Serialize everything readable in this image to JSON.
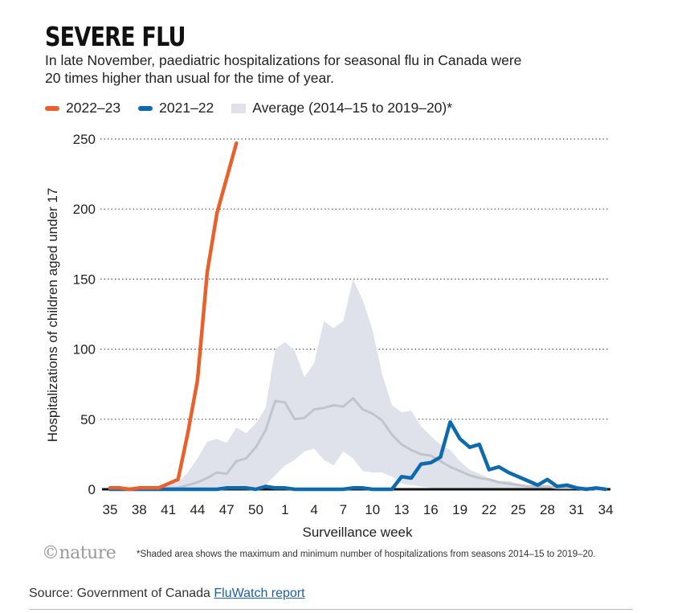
{
  "title": "SEVERE FLU",
  "subtitle": "In late November, paediatric hospitalizations for seasonal flu in Canada were 20 times higher than usual for the time of year.",
  "legend": {
    "s1": "2022–23",
    "s2": "2021–22",
    "s3": "Average (2014–15 to 2019–20)*"
  },
  "logo": "©nature",
  "footnote": "*Shaded area shows the maximum and minimum number of hospitalizations from seasons 2014–15 to 2019–20.",
  "source": {
    "prefix": "Source: Government of Canada ",
    "link": "FluWatch report"
  },
  "colors": {
    "s2022": "#e8612c",
    "s2021": "#0f6aad",
    "avg": "#c0c4cc",
    "band": "#dfe2ea"
  },
  "chart_data": {
    "type": "line",
    "xlabel": "Surveillance week",
    "ylabel": "Hospitalizations of children aged under 17",
    "ylim": [
      0,
      250
    ],
    "yticks": [
      0,
      50,
      100,
      150,
      200,
      250
    ],
    "x_weeks": [
      35,
      36,
      37,
      38,
      39,
      40,
      41,
      42,
      43,
      44,
      45,
      46,
      47,
      48,
      49,
      50,
      51,
      52,
      1,
      2,
      3,
      4,
      5,
      6,
      7,
      8,
      9,
      10,
      11,
      12,
      13,
      14,
      15,
      16,
      17,
      18,
      19,
      20,
      21,
      22,
      23,
      24,
      25,
      26,
      27,
      28,
      29,
      30,
      31,
      32,
      33,
      34
    ],
    "xtick_labels": [
      "35",
      "38",
      "41",
      "44",
      "47",
      "50",
      "1",
      "4",
      "7",
      "10",
      "13",
      "16",
      "19",
      "22",
      "25",
      "28",
      "31",
      "34"
    ],
    "grid": "horizontal dotted",
    "legend_position": "top-left",
    "series": [
      {
        "name": "2022–23",
        "values": [
          1,
          1,
          0,
          1,
          1,
          1,
          4,
          7,
          40,
          78,
          155,
          197,
          222,
          247
        ]
      },
      {
        "name": "2021–22",
        "values": [
          0,
          0,
          0,
          0,
          0,
          0,
          0,
          0,
          0,
          0,
          0,
          0,
          1,
          1,
          1,
          0,
          2,
          1,
          1,
          0,
          0,
          0,
          0,
          0,
          0,
          1,
          1,
          0,
          0,
          0,
          9,
          8,
          18,
          19,
          23,
          48,
          36,
          30,
          32,
          14,
          16,
          12,
          9,
          6,
          3,
          7,
          2,
          3,
          1,
          0,
          1,
          0
        ]
      },
      {
        "name": "Average (2014–15 to 2019–20)*",
        "values": [
          0,
          0,
          0,
          0,
          0,
          1,
          1,
          1,
          3,
          5,
          8,
          12,
          11,
          20,
          22,
          30,
          42,
          63,
          62,
          50,
          51,
          57,
          58,
          60,
          59,
          65,
          57,
          54,
          49,
          39,
          32,
          28,
          25,
          24,
          20,
          16,
          13,
          10,
          8,
          7,
          5,
          4,
          3,
          2,
          2,
          2,
          1,
          1,
          1,
          1,
          0,
          0
        ]
      }
    ],
    "band_min": [
      0,
      0,
      0,
      0,
      0,
      0,
      0,
      0,
      0,
      0,
      0,
      0,
      0,
      0,
      0,
      1,
      3,
      10,
      17,
      21,
      27,
      29,
      21,
      17,
      27,
      22,
      13,
      12,
      12,
      9,
      4,
      3,
      2,
      1,
      0,
      0,
      0,
      0,
      0,
      0,
      0,
      0,
      0,
      0,
      0,
      0,
      0,
      0,
      0,
      0,
      0,
      0
    ],
    "band_max": [
      1,
      1,
      1,
      1,
      1,
      2,
      3,
      5,
      12,
      22,
      34,
      36,
      33,
      44,
      40,
      47,
      58,
      100,
      105,
      99,
      80,
      90,
      120,
      115,
      120,
      150,
      135,
      114,
      82,
      60,
      55,
      56,
      45,
      38,
      32,
      28,
      20,
      14,
      11,
      8,
      6,
      6,
      4,
      3,
      3,
      3,
      2,
      2,
      2,
      1,
      1,
      1
    ]
  }
}
